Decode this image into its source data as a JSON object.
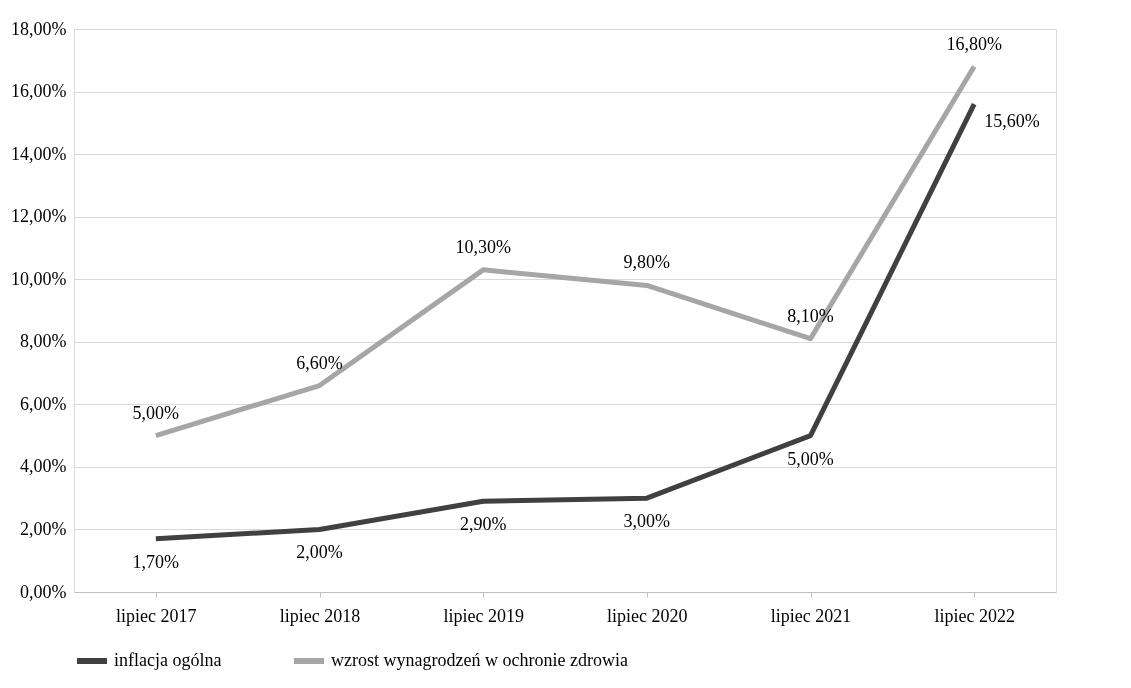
{
  "chart_data": {
    "type": "line",
    "categories": [
      "lipiec 2017",
      "lipiec 2018",
      "lipiec 2019",
      "lipiec 2020",
      "lipiec 2021",
      "lipiec 2022"
    ],
    "series": [
      {
        "name": "inflacja ogólna",
        "color": "#404040",
        "values": [
          1.7,
          2.0,
          2.9,
          3.0,
          5.0,
          15.6
        ],
        "value_labels": [
          "1,70%",
          "2,00%",
          "2,90%",
          "3,00%",
          "5,00%",
          "15,60%"
        ]
      },
      {
        "name": "wzrost wynagrodzeń w ochronie zdrowia",
        "color": "#a6a6a6",
        "values": [
          5.0,
          6.6,
          10.3,
          9.8,
          8.1,
          16.8
        ],
        "value_labels": [
          "5,00%",
          "6,60%",
          "10,30%",
          "9,80%",
          "8,10%",
          "16,80%"
        ]
      }
    ],
    "ylim": [
      0,
      18
    ],
    "yticks": [
      {
        "value": 0,
        "label": "0,00%"
      },
      {
        "value": 2,
        "label": "2,00%"
      },
      {
        "value": 4,
        "label": "4,00%"
      },
      {
        "value": 6,
        "label": "6,00%"
      },
      {
        "value": 8,
        "label": "8,00%"
      },
      {
        "value": 10,
        "label": "10,00%"
      },
      {
        "value": 12,
        "label": "12,00%"
      },
      {
        "value": 14,
        "label": "14,00%"
      },
      {
        "value": 16,
        "label": "16,00%"
      },
      {
        "value": 18,
        "label": "18,00%"
      }
    ],
    "grid": "y",
    "legend": "bottom",
    "marker": "none",
    "line_style": "solid"
  }
}
